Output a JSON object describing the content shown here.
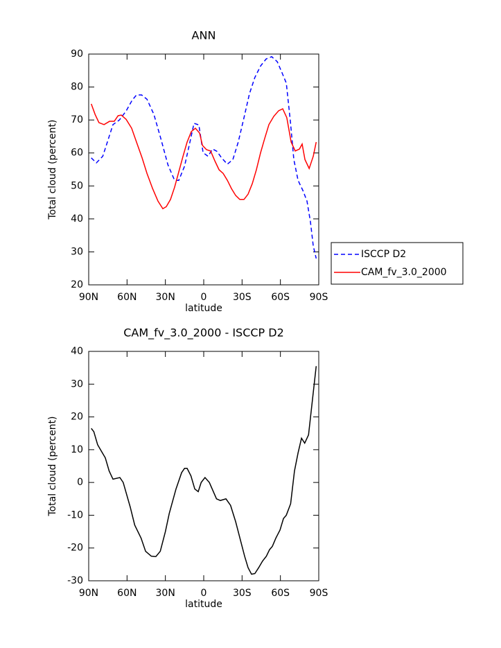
{
  "chart_data": [
    {
      "type": "line",
      "title": "ANN",
      "xlabel": "latitude",
      "ylabel": "Total cloud (percent)",
      "xlim": [
        90,
        -90
      ],
      "ylim": [
        20,
        90
      ],
      "xticks": [
        {
          "value": 90,
          "label": "90N"
        },
        {
          "value": 60,
          "label": "60N"
        },
        {
          "value": 30,
          "label": "30N"
        },
        0,
        {
          "value": -30,
          "label": "30S"
        },
        {
          "value": -60,
          "label": "60S"
        },
        {
          "value": -90,
          "label": "90S"
        }
      ],
      "yticks": [
        20,
        30,
        40,
        50,
        60,
        70,
        80,
        90
      ],
      "legend": "right",
      "series": [
        {
          "name": "ISCCP D2",
          "color": "#0000ff",
          "style": "dashed",
          "x": [
            88,
            84,
            79,
            75.4,
            71,
            66,
            60.6,
            56,
            52.6,
            48.6,
            44.4,
            39,
            33.6,
            28,
            22.8,
            19.5,
            15,
            10.8,
            7.6,
            3.8,
            0.5,
            -3.3,
            -7,
            -10.3,
            -14,
            -18.5,
            -22.8,
            -27,
            -31.5,
            -35.8,
            -40,
            -44.5,
            -48.8,
            -53.2,
            -57.5,
            -61.3,
            -64.6,
            -67.8,
            -70.5,
            -73.8,
            -77.6,
            -80.8,
            -83.5,
            -85.7,
            -88
          ],
          "values": [
            58.5,
            57,
            59,
            63.3,
            68.6,
            70,
            72.8,
            76,
            77.6,
            77.6,
            76.3,
            71.7,
            64.4,
            56.4,
            51.7,
            51.7,
            56,
            63.3,
            69,
            68.5,
            60.1,
            59,
            61.2,
            60.5,
            58.5,
            56.6,
            58,
            63.3,
            70.7,
            78,
            82.9,
            86.4,
            88.5,
            89.2,
            87.7,
            84.3,
            81.2,
            69.6,
            58,
            51.7,
            48.6,
            45.4,
            39.1,
            31.8,
            28
          ]
        },
        {
          "name": "CAM_fv_3.0_2000",
          "color": "#ff0000",
          "style": "solid",
          "x": [
            88,
            85,
            82,
            78,
            73.7,
            70,
            67,
            64.5,
            60.7,
            56.4,
            52.6,
            48.2,
            44.4,
            40,
            35.8,
            32,
            29.3,
            26,
            22.8,
            19.5,
            16.2,
            13,
            9.7,
            6.5,
            3.2,
            1,
            -2.2,
            -5.4,
            -8.7,
            -12,
            -15.2,
            -18.5,
            -21.7,
            -25,
            -28.2,
            -31.5,
            -34.7,
            -38,
            -41.2,
            -44.5,
            -47.7,
            -51,
            -54.8,
            -58.6,
            -61.8,
            -65,
            -68.4,
            -71.6,
            -74.9,
            -77,
            -79.2,
            -82.5,
            -85.7,
            -88
          ],
          "values": [
            74.9,
            71.7,
            69.2,
            68.6,
            69.6,
            69.6,
            71.3,
            71.5,
            70.2,
            67.5,
            63.3,
            58.5,
            53.8,
            49.2,
            45.4,
            43.1,
            43.7,
            45.9,
            49.6,
            54.3,
            59,
            63.3,
            66.5,
            67.5,
            66,
            62.3,
            61,
            60.6,
            57.6,
            54.9,
            53.8,
            51.7,
            49.2,
            47.1,
            45.9,
            45.9,
            47.5,
            50.7,
            54.9,
            60.1,
            64.4,
            68.6,
            71.1,
            72.8,
            73.4,
            70.7,
            63.3,
            60.6,
            61.2,
            62.7,
            58,
            55.3,
            59,
            63.3
          ]
        }
      ]
    },
    {
      "type": "line",
      "title": "CAM_fv_3.0_2000 - ISCCP D2",
      "xlabel": "latitude",
      "ylabel": "Total cloud (percent)",
      "xlim": [
        90,
        -90
      ],
      "ylim": [
        -30,
        40
      ],
      "xticks": [
        {
          "value": 90,
          "label": "90N"
        },
        {
          "value": 60,
          "label": "60N"
        },
        {
          "value": 30,
          "label": "30N"
        },
        0,
        {
          "value": -30,
          "label": "30S"
        },
        {
          "value": -60,
          "label": "60S"
        },
        {
          "value": -90,
          "label": "90S"
        }
      ],
      "yticks": [
        -30,
        -20,
        -10,
        0,
        10,
        20,
        30,
        40
      ],
      "series": [
        {
          "color": "#000000",
          "style": "solid",
          "x": [
            88,
            86,
            83,
            80,
            77,
            74,
            71,
            65.6,
            63,
            57.5,
            54,
            49,
            45.5,
            41,
            37.4,
            34,
            30,
            27,
            21.7,
            17.3,
            15,
            13,
            10,
            7,
            4.3,
            2,
            -1,
            -4.4,
            -10,
            -13,
            -17.4,
            -21,
            -25,
            -29,
            -32,
            -34.7,
            -37.4,
            -40,
            -43,
            -46,
            -49,
            -51.5,
            -53.7,
            -56.4,
            -59.7,
            -62.4,
            -64.6,
            -68,
            -71,
            -73.8,
            -76.5,
            -79,
            -82,
            -85,
            -88
          ],
          "values": [
            16.5,
            15.5,
            11.5,
            9.5,
            7.5,
            3.5,
            1,
            1.5,
            0,
            -7.5,
            -13,
            -17,
            -21,
            -22.5,
            -22.6,
            -21,
            -15,
            -9.5,
            -2,
            3,
            4.3,
            4.3,
            2,
            -2,
            -2.8,
            0,
            1.5,
            0,
            -5,
            -5.5,
            -5,
            -7,
            -12,
            -18,
            -22.5,
            -26,
            -28,
            -27.8,
            -26,
            -24,
            -22.5,
            -20.5,
            -19.5,
            -17,
            -14.5,
            -11,
            -10,
            -6.5,
            3.5,
            9,
            13.5,
            12,
            14.5,
            25,
            35.5
          ]
        }
      ]
    }
  ]
}
